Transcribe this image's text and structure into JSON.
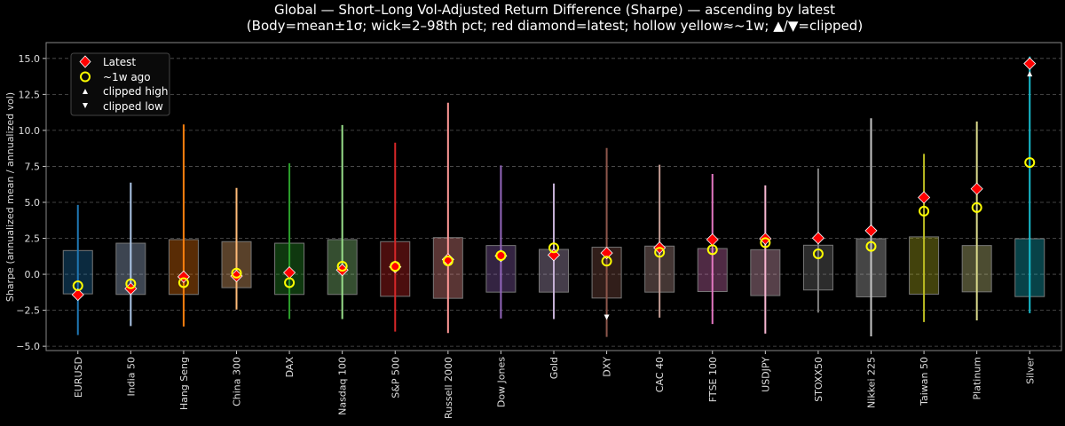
{
  "chart_data": {
    "type": "box-range",
    "title": "Global — Short–Long Vol-Adjusted Return Difference (Sharpe) — ascending by latest",
    "subtitle": "(Body=mean±1σ; wick=2–98th pct; red diamond=latest; hollow yellow≈~1w; ▲/▼=clipped)",
    "xlabel": "",
    "ylabel": "Sharpe (annualized mean / annualized vol)",
    "ylim": [
      -5.3,
      16.1
    ],
    "yticks": [
      -5.0,
      -2.5,
      0.0,
      2.5,
      5.0,
      7.5,
      10.0,
      12.5,
      15.0
    ],
    "grid": "horizontal dashed",
    "legend_position": "top-left",
    "legend": [
      {
        "label": "Latest",
        "marker": "red-diamond",
        "color": "#ff0000"
      },
      {
        "label": "~1w ago",
        "marker": "hollow-circle",
        "color": "#ffff00"
      },
      {
        "label": "clipped high",
        "marker": "triangle-up",
        "color": "#ffffff"
      },
      {
        "label": "clipped low",
        "marker": "triangle-down",
        "color": "#ffffff"
      }
    ],
    "categories": [
      "EURUSD",
      "India 50",
      "Hang Seng",
      "China 300",
      "DAX",
      "Nasdaq 100",
      "S&P 500",
      "Russell 2000",
      "Dow Jones",
      "Gold",
      "DXY",
      "CAC 40",
      "FTSE 100",
      "USDJPY",
      "STOXX50",
      "Nikkei 225",
      "Taiwan 50",
      "Platinum",
      "Silver"
    ],
    "colors": [
      "#1f77b4",
      "#aec7e8",
      "#ff7f0e",
      "#ffbb78",
      "#2ca02c",
      "#98df8a",
      "#d62728",
      "#ff9896",
      "#9467bd",
      "#c5b0d5",
      "#8c564b",
      "#c49c94",
      "#e377c2",
      "#f7b6d2",
      "#7f7f7f",
      "#c7c7c7",
      "#bcbd22",
      "#dbdb8d",
      "#17becf"
    ],
    "body_low": [
      -1.36,
      -1.4,
      -1.4,
      -0.93,
      -1.4,
      -1.4,
      -1.53,
      -1.67,
      -1.24,
      -1.24,
      -1.65,
      -1.24,
      -1.2,
      -1.48,
      -1.09,
      -1.57,
      -1.38,
      -1.22,
      -1.55
    ],
    "body_high": [
      1.65,
      2.16,
      2.41,
      2.27,
      2.16,
      2.41,
      2.27,
      2.55,
      2.0,
      1.73,
      1.88,
      1.96,
      1.79,
      1.71,
      2.02,
      2.47,
      2.6,
      2.0,
      2.47
    ],
    "wick_low": [
      -4.22,
      -3.6,
      -3.63,
      -2.45,
      -3.11,
      -3.11,
      -3.98,
      -4.08,
      -3.07,
      -3.11,
      -4.35,
      -3.01,
      -3.46,
      -4.12,
      -2.66,
      -4.31,
      -3.32,
      -3.2,
      -2.7
    ],
    "wick_high": [
      4.82,
      6.37,
      10.41,
      6.0,
      7.71,
      10.37,
      9.15,
      11.92,
      7.57,
      6.31,
      8.78,
      7.61,
      6.97,
      6.18,
      7.36,
      10.84,
      8.37,
      10.62,
      15.13
    ],
    "latest": [
      -1.42,
      -1.0,
      -0.17,
      -0.12,
      0.12,
      0.3,
      0.51,
      1.03,
      1.28,
      1.34,
      1.48,
      1.85,
      2.41,
      2.47,
      2.52,
      3.03,
      5.34,
      5.94,
      14.64
    ],
    "week_ago": [
      -0.8,
      -0.66,
      -0.58,
      0.08,
      -0.58,
      0.56,
      0.55,
      0.93,
      1.3,
      1.84,
      0.91,
      1.53,
      1.71,
      2.2,
      1.42,
      1.94,
      4.39,
      4.64,
      7.77
    ],
    "clipped_high": [
      null,
      null,
      null,
      null,
      null,
      null,
      null,
      null,
      null,
      null,
      null,
      null,
      null,
      null,
      null,
      null,
      null,
      null,
      13.93
    ],
    "clipped_low": [
      null,
      null,
      null,
      null,
      null,
      null,
      null,
      null,
      null,
      null,
      -2.99,
      null,
      null,
      null,
      null,
      null,
      null,
      null,
      null
    ]
  }
}
